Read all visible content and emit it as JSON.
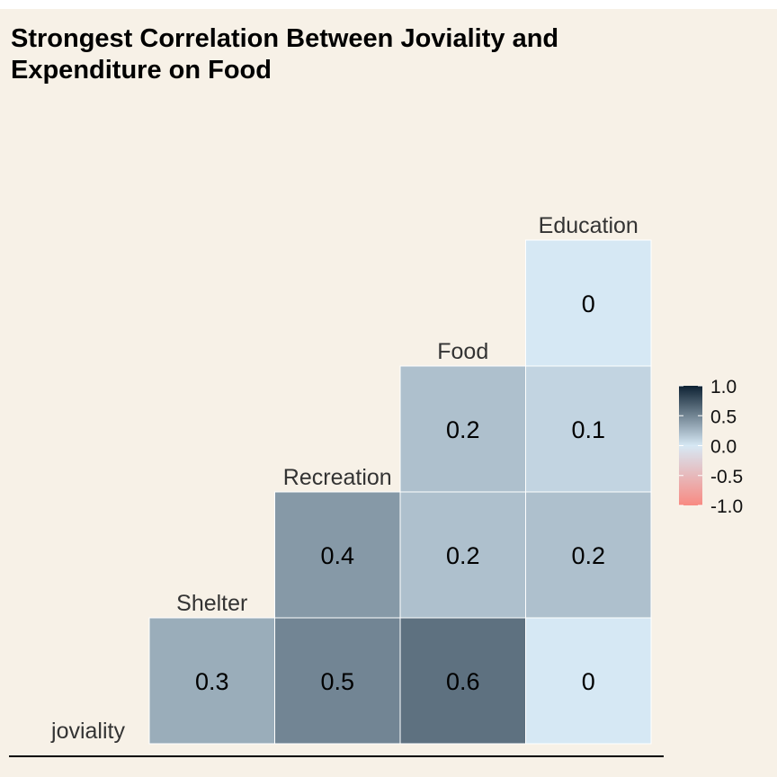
{
  "title_lines": [
    "Strongest Correlation Between Joviality and",
    "Expenditure on Food"
  ],
  "colors": {
    "background": "#f7f1e7",
    "low": "#f88a82",
    "mid": "#d6e8f4",
    "high": "#0e2233",
    "cell_border": "#ffffff",
    "text": "#000000"
  },
  "chart_data": {
    "type": "heatmap",
    "subtype": "lower-triangle correlation matrix",
    "variables": [
      "joviality",
      "Shelter",
      "Recreation",
      "Food",
      "Education"
    ],
    "cells": [
      {
        "row": "joviality",
        "col": "Shelter",
        "value": 0.3,
        "label": "0.3"
      },
      {
        "row": "joviality",
        "col": "Recreation",
        "value": 0.5,
        "label": "0.5"
      },
      {
        "row": "joviality",
        "col": "Food",
        "value": 0.6,
        "label": "0.6"
      },
      {
        "row": "joviality",
        "col": "Education",
        "value": 0.0,
        "label": "0"
      },
      {
        "row": "Shelter",
        "col": "Recreation",
        "value": 0.4,
        "label": "0.4"
      },
      {
        "row": "Shelter",
        "col": "Food",
        "value": 0.2,
        "label": "0.2"
      },
      {
        "row": "Shelter",
        "col": "Education",
        "value": 0.2,
        "label": "0.2"
      },
      {
        "row": "Recreation",
        "col": "Food",
        "value": 0.2,
        "label": "0.2"
      },
      {
        "row": "Recreation",
        "col": "Education",
        "value": 0.1,
        "label": "0.1"
      },
      {
        "row": "Food",
        "col": "Education",
        "value": 0.0,
        "label": "0"
      }
    ],
    "color_scale": {
      "range": [
        -1.0,
        1.0
      ],
      "ticks": [
        1.0,
        0.5,
        0.0,
        -0.5,
        -1.0
      ],
      "tick_labels": [
        "1.0",
        "0.5",
        "0.0",
        "-0.5",
        "-1.0"
      ]
    },
    "legend_position": "right",
    "grid": false
  }
}
